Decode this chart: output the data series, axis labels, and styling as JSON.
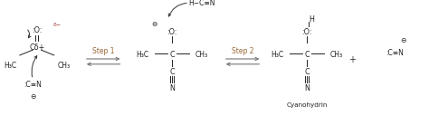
{
  "bg_color": "#ffffff",
  "step1_label": "Step 1",
  "step2_label": "Step 2",
  "cyanohydrin_label": "Cyanohydrin",
  "figw": 4.74,
  "figh": 1.28,
  "dpi": 100
}
